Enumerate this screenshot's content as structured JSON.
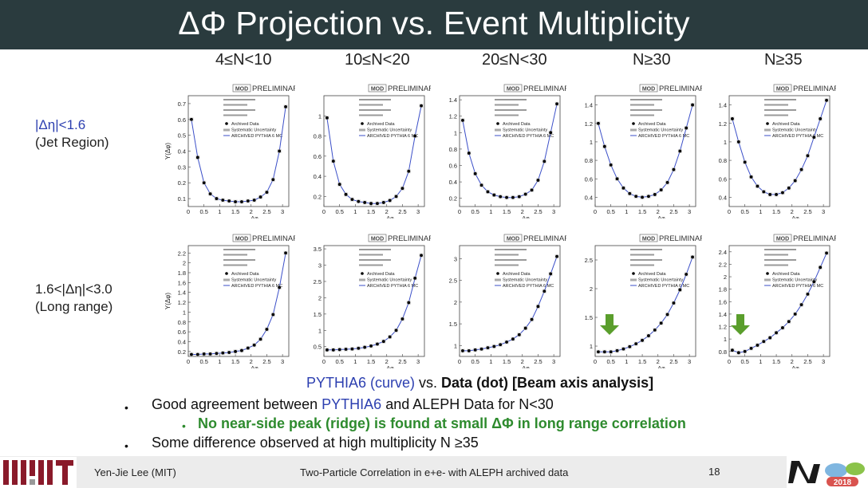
{
  "title": "ΔΦ Projection vs. Event Multiplicity",
  "columns": [
    "4≤N<10",
    "10≤N<20",
    "20≤N<30",
    "N≥30",
    "N≥35"
  ],
  "rows": [
    {
      "line1": "|Δη|<1.6",
      "line2": "(Jet Region)"
    },
    {
      "line1": "1.6<|Δη|<3.0",
      "line2": "(Long range)"
    }
  ],
  "panel_text": {
    "preliminary": "PRELIMINARY",
    "mod": "MOD",
    "ylabel": "Y(Δφ)",
    "xlabel": "Δφ",
    "legend_data": "Archived Data",
    "legend_syst": "Systematic Uncertainty",
    "legend_mc": "ARCHIVED PYTHIA 6 MC",
    "xticks": [
      "0",
      "0.5",
      "1",
      "1.5",
      "2",
      "2.5",
      "3"
    ]
  },
  "chart_data": [
    {
      "type": "scatter",
      "row": 0,
      "col": 0,
      "yticks": [
        "0.1",
        "0.2",
        "0.3",
        "0.4",
        "0.5",
        "0.6",
        "0.7"
      ],
      "ylim": [
        0.05,
        0.75
      ],
      "x": [
        0.1,
        0.3,
        0.5,
        0.7,
        0.9,
        1.1,
        1.3,
        1.5,
        1.7,
        1.9,
        2.1,
        2.3,
        2.5,
        2.7,
        2.9,
        3.1
      ],
      "y": [
        0.6,
        0.36,
        0.2,
        0.13,
        0.1,
        0.09,
        0.085,
        0.08,
        0.08,
        0.085,
        0.09,
        0.11,
        0.14,
        0.22,
        0.4,
        0.68
      ]
    },
    {
      "type": "scatter",
      "row": 0,
      "col": 1,
      "yticks": [
        "0.2",
        "0.4",
        "0.6",
        "0.8",
        "1"
      ],
      "ylim": [
        0.1,
        1.2
      ],
      "x": [
        0.1,
        0.3,
        0.5,
        0.7,
        0.9,
        1.1,
        1.3,
        1.5,
        1.7,
        1.9,
        2.1,
        2.3,
        2.5,
        2.7,
        2.9,
        3.1
      ],
      "y": [
        0.98,
        0.55,
        0.32,
        0.22,
        0.17,
        0.15,
        0.14,
        0.13,
        0.13,
        0.14,
        0.16,
        0.2,
        0.28,
        0.45,
        0.8,
        1.1
      ]
    },
    {
      "type": "scatter",
      "row": 0,
      "col": 2,
      "yticks": [
        "0.2",
        "0.4",
        "0.6",
        "0.8",
        "1",
        "1.2",
        "1.4"
      ],
      "ylim": [
        0.1,
        1.45
      ],
      "x": [
        0.1,
        0.3,
        0.5,
        0.7,
        0.9,
        1.1,
        1.3,
        1.5,
        1.7,
        1.9,
        2.1,
        2.3,
        2.5,
        2.7,
        2.9,
        3.1
      ],
      "y": [
        1.15,
        0.75,
        0.5,
        0.36,
        0.28,
        0.24,
        0.22,
        0.21,
        0.21,
        0.22,
        0.25,
        0.3,
        0.42,
        0.65,
        1.0,
        1.35
      ]
    },
    {
      "type": "scatter",
      "row": 0,
      "col": 3,
      "yticks": [
        "0.4",
        "0.6",
        "0.8",
        "1",
        "1.2",
        "1.4"
      ],
      "ylim": [
        0.3,
        1.5
      ],
      "x": [
        0.1,
        0.3,
        0.5,
        0.7,
        0.9,
        1.1,
        1.3,
        1.5,
        1.7,
        1.9,
        2.1,
        2.3,
        2.5,
        2.7,
        2.9,
        3.1
      ],
      "y": [
        1.2,
        0.95,
        0.75,
        0.6,
        0.5,
        0.44,
        0.41,
        0.4,
        0.41,
        0.43,
        0.48,
        0.56,
        0.7,
        0.9,
        1.15,
        1.4
      ]
    },
    {
      "type": "scatter",
      "row": 0,
      "col": 4,
      "yticks": [
        "0.4",
        "0.6",
        "0.8",
        "1",
        "1.2",
        "1.4"
      ],
      "ylim": [
        0.3,
        1.5
      ],
      "x": [
        0.1,
        0.3,
        0.5,
        0.7,
        0.9,
        1.1,
        1.3,
        1.5,
        1.7,
        1.9,
        2.1,
        2.3,
        2.5,
        2.7,
        2.9,
        3.1
      ],
      "y": [
        1.25,
        1.0,
        0.78,
        0.62,
        0.52,
        0.46,
        0.43,
        0.43,
        0.45,
        0.5,
        0.58,
        0.7,
        0.85,
        1.05,
        1.25,
        1.45
      ]
    },
    {
      "type": "scatter",
      "row": 1,
      "col": 0,
      "yticks": [
        "0.2",
        "0.4",
        "0.6",
        "0.8",
        "1",
        "1.2",
        "1.4",
        "1.6",
        "1.8",
        "2",
        "2.2"
      ],
      "ylim": [
        0.1,
        2.35
      ],
      "x": [
        0.1,
        0.3,
        0.5,
        0.7,
        0.9,
        1.1,
        1.3,
        1.5,
        1.7,
        1.9,
        2.1,
        2.3,
        2.5,
        2.7,
        2.9,
        3.1
      ],
      "y": [
        0.14,
        0.14,
        0.15,
        0.15,
        0.16,
        0.17,
        0.18,
        0.2,
        0.22,
        0.27,
        0.33,
        0.45,
        0.65,
        0.95,
        1.5,
        2.2
      ]
    },
    {
      "type": "scatter",
      "row": 1,
      "col": 1,
      "yticks": [
        "0.5",
        "1",
        "1.5",
        "2",
        "2.5",
        "3",
        "3.5"
      ],
      "ylim": [
        0.2,
        3.6
      ],
      "x": [
        0.1,
        0.3,
        0.5,
        0.7,
        0.9,
        1.1,
        1.3,
        1.5,
        1.7,
        1.9,
        2.1,
        2.3,
        2.5,
        2.7,
        2.9,
        3.1
      ],
      "y": [
        0.4,
        0.4,
        0.41,
        0.42,
        0.43,
        0.45,
        0.48,
        0.52,
        0.58,
        0.66,
        0.8,
        1.0,
        1.35,
        1.85,
        2.6,
        3.3
      ]
    },
    {
      "type": "scatter",
      "row": 1,
      "col": 2,
      "yticks": [
        "1",
        "1.5",
        "2",
        "2.5",
        "3"
      ],
      "ylim": [
        0.75,
        3.3
      ],
      "x": [
        0.1,
        0.3,
        0.5,
        0.7,
        0.9,
        1.1,
        1.3,
        1.5,
        1.7,
        1.9,
        2.1,
        2.3,
        2.5,
        2.7,
        2.9,
        3.1
      ],
      "y": [
        0.88,
        0.88,
        0.9,
        0.92,
        0.95,
        0.98,
        1.02,
        1.08,
        1.15,
        1.25,
        1.4,
        1.6,
        1.9,
        2.25,
        2.65,
        3.05
      ]
    },
    {
      "type": "scatter",
      "row": 1,
      "col": 3,
      "yticks": [
        "1",
        "1.5",
        "2",
        "2.5"
      ],
      "ylim": [
        0.82,
        2.75
      ],
      "x": [
        0.1,
        0.3,
        0.5,
        0.7,
        0.9,
        1.1,
        1.3,
        1.5,
        1.7,
        1.9,
        2.1,
        2.3,
        2.5,
        2.7,
        2.9,
        3.1
      ],
      "y": [
        0.9,
        0.9,
        0.9,
        0.92,
        0.95,
        0.99,
        1.04,
        1.1,
        1.18,
        1.28,
        1.4,
        1.55,
        1.75,
        1.98,
        2.25,
        2.55
      ]
    },
    {
      "type": "scatter",
      "row": 1,
      "col": 4,
      "yticks": [
        "0.8",
        "1",
        "1.2",
        "1.4",
        "1.6",
        "1.8",
        "2",
        "2.2",
        "2.4"
      ],
      "ylim": [
        0.72,
        2.5
      ],
      "x": [
        0.1,
        0.3,
        0.5,
        0.7,
        0.9,
        1.1,
        1.3,
        1.5,
        1.7,
        1.9,
        2.1,
        2.3,
        2.5,
        2.7,
        2.9,
        3.1
      ],
      "y": [
        0.82,
        0.78,
        0.8,
        0.85,
        0.9,
        0.96,
        1.02,
        1.1,
        1.18,
        1.28,
        1.4,
        1.55,
        1.72,
        1.92,
        2.15,
        2.38
      ]
    }
  ],
  "caption": {
    "part1": "PYTHIA6 (curve)",
    "part2": " vs. ",
    "part3": "Data (dot)  [Beam axis analysis]"
  },
  "bullets": {
    "b1_pre": "Good agreement between ",
    "b1_blue": "PYTHIA6",
    "b1_post": " and ALEPH Data for N<30",
    "sub": "No near-side peak (ridge) is found at small ΔΦ in long range correlation",
    "b2": "Some difference observed at high multiplicity N ≥35",
    "bullet_char": "•"
  },
  "footer": {
    "author": "Yen-Jie Lee (MIT)",
    "talk": "Two-Particle Correlation in e+e- with ALEPH archived data",
    "page": "18"
  },
  "colors": {
    "titlebar": "#2a3b3e",
    "curve": "#3b4fc8",
    "arrow": "#5a9e2c",
    "blue_text": "#2c3fb0",
    "sub_bullet": "#2e8b2e"
  }
}
